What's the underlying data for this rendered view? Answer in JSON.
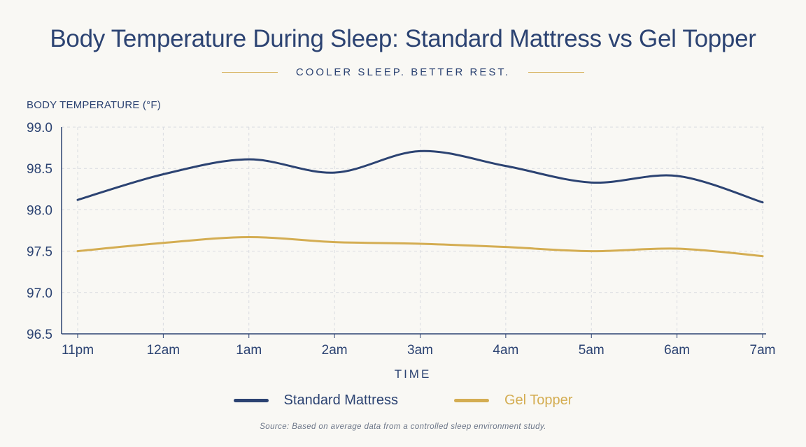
{
  "subtitle": "COOLER SLEEP. BETTER REST.",
  "source": "Source: Based on average data from a controlled sleep environment study.",
  "colors": {
    "standard": "#2c4372",
    "gel": "#d4ad52",
    "grid": "#d9dbe0",
    "axis": "#2c4372"
  },
  "chart_data": {
    "type": "line",
    "title": "Body Temperature During Sleep: Standard Mattress vs Gel Topper",
    "xlabel": "TIME",
    "ylabel": "BODY TEMPERATURE (°F)",
    "categories": [
      "11pm",
      "12am",
      "1am",
      "2am",
      "3am",
      "4am",
      "5am",
      "6am",
      "7am"
    ],
    "ylim": [
      96.5,
      99.0
    ],
    "yticks": [
      "96.5",
      "97.0",
      "97.5",
      "98.0",
      "98.5",
      "99.0"
    ],
    "grid": true,
    "legend_position": "bottom-center",
    "series": [
      {
        "name": "Standard Mattress",
        "values": [
          98.12,
          98.43,
          98.61,
          98.45,
          98.71,
          98.53,
          98.33,
          98.41,
          98.09
        ]
      },
      {
        "name": "Gel Topper",
        "values": [
          97.5,
          97.6,
          97.67,
          97.61,
          97.59,
          97.55,
          97.5,
          97.53,
          97.44
        ]
      }
    ]
  }
}
